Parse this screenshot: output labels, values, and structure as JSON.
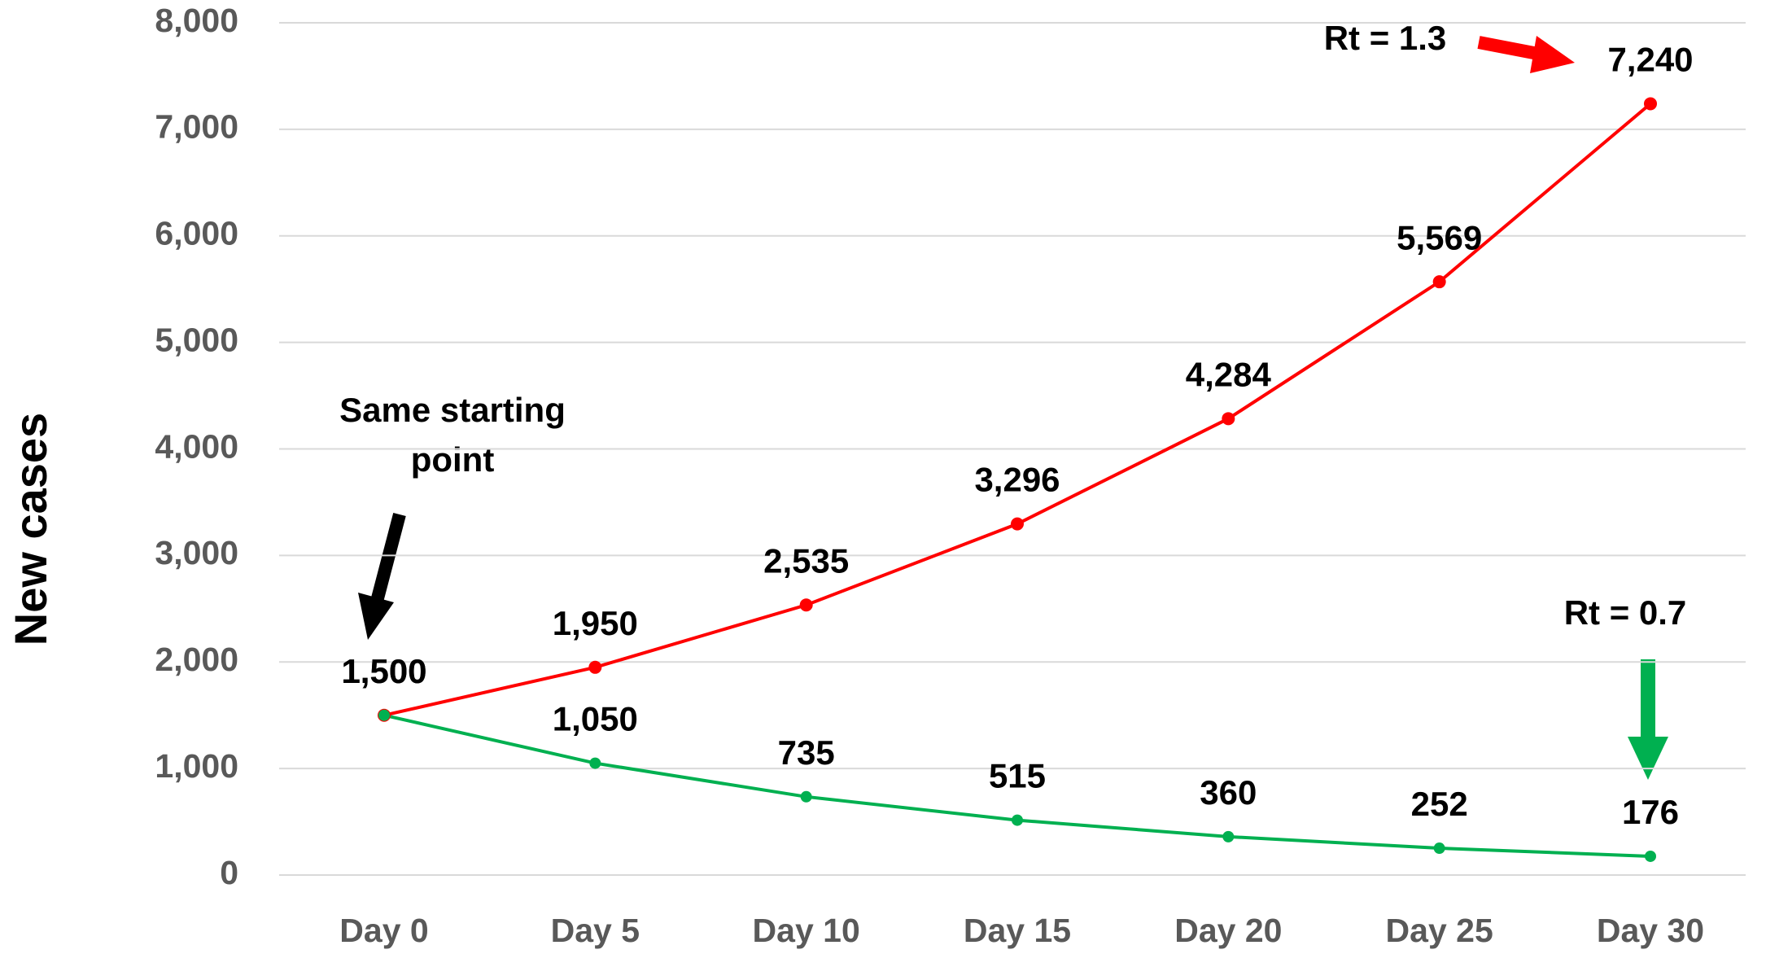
{
  "chart_data": {
    "type": "line",
    "y_label": "New cases",
    "categories": [
      "Day 0",
      "Day 5",
      "Day 10",
      "Day 15",
      "Day 20",
      "Day 25",
      "Day 30"
    ],
    "series": [
      {
        "name": "Rt = 1.3",
        "color": "#ff0000",
        "values": [
          1500,
          1950,
          2535,
          3296,
          4284,
          5569,
          7240
        ],
        "value_labels": [
          "1,500",
          "1,950",
          "2,535",
          "3,296",
          "4,284",
          "5,569",
          "7,240"
        ]
      },
      {
        "name": "Rt = 0.7",
        "color": "#00b050",
        "values": [
          1500,
          1050,
          735,
          515,
          360,
          252,
          176
        ],
        "value_labels": [
          "1,500",
          "1,050",
          "735",
          "515",
          "360",
          "252",
          "176"
        ]
      }
    ],
    "annotations": [
      {
        "lines": [
          "Same starting",
          "point"
        ]
      }
    ],
    "ylim": [
      0,
      8000
    ],
    "yticks": [
      0,
      {
        "value": 1000,
        "label": "1,000"
      },
      {
        "value": 2000,
        "label": "2,000"
      },
      {
        "value": 3000,
        "label": "3,000"
      },
      {
        "value": 4000,
        "label": "4,000"
      },
      {
        "value": 5000,
        "label": "5,000"
      },
      {
        "value": 6000,
        "label": "6,000"
      },
      {
        "value": 7000,
        "label": "7,000"
      },
      {
        "value": 8000,
        "label": "8,000"
      }
    ],
    "grid": true
  }
}
